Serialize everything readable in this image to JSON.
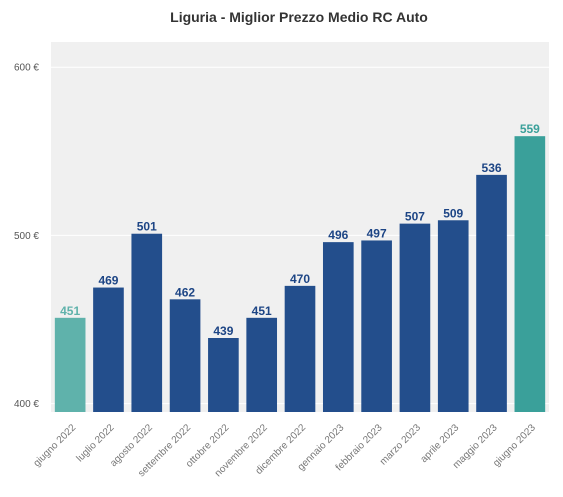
{
  "chart_data": {
    "type": "bar",
    "title": "Liguria - Miglior Prezzo Medio RC Auto",
    "xlabel": "",
    "ylabel": "",
    "ylim": [
      395,
      615
    ],
    "yticks": [
      400,
      500,
      600
    ],
    "ytick_labels": [
      "400 €",
      "500 €",
      "600 €"
    ],
    "grid": true,
    "categories": [
      "giugno 2022",
      "luglio 2022",
      "agosto 2022",
      "settembre 2022",
      "ottobre 2022",
      "novembre 2022",
      "dicembre 2022",
      "gennaio 2023",
      "febbraio 2023",
      "marzo 2023",
      "aprile 2023",
      "maggio 2023",
      "giugno 2023"
    ],
    "values": [
      451,
      469,
      501,
      462,
      439,
      451,
      470,
      496,
      497,
      507,
      509,
      536,
      559
    ],
    "value_labels": [
      "451",
      "469",
      "501",
      "462",
      "439",
      "451",
      "470",
      "496",
      "497",
      "507",
      "509",
      "536",
      "559"
    ],
    "bar_colors": [
      "#5fb2ab",
      "#234e8c",
      "#234e8c",
      "#234e8c",
      "#234e8c",
      "#234e8c",
      "#234e8c",
      "#234e8c",
      "#234e8c",
      "#234e8c",
      "#234e8c",
      "#234e8c",
      "#3aa09a"
    ],
    "label_colors": [
      "#5fb2ab",
      "#1d4585",
      "#1d4585",
      "#1d4585",
      "#1d4585",
      "#1d4585",
      "#1d4585",
      "#1d4585",
      "#1d4585",
      "#1d4585",
      "#1d4585",
      "#1d4585",
      "#3aa09a"
    ],
    "plot_background": "#f0f0f0"
  }
}
